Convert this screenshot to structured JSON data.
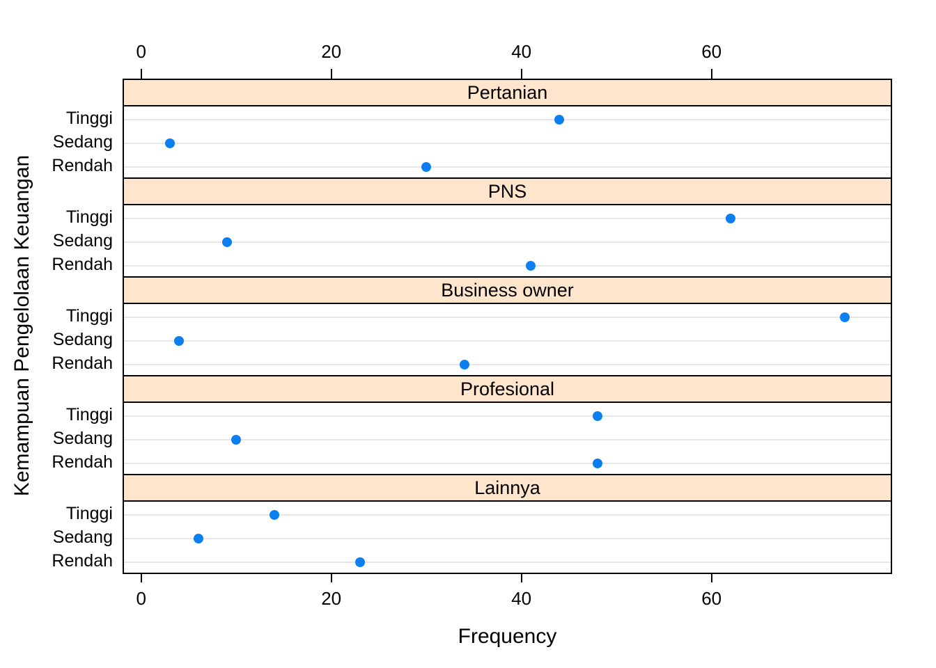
{
  "chart_data": {
    "type": "scatter",
    "subtype": "lattice-dotplot",
    "xlabel": "Frequency",
    "ylabel": "Kemampuan Pengelolaan Keuangan",
    "x_ticks": [
      0,
      20,
      40,
      60
    ],
    "xlim": [
      -2,
      79
    ],
    "y_categories": [
      "Tinggi",
      "Sedang",
      "Rendah"
    ],
    "panels": [
      {
        "label": "Pertanian",
        "values": {
          "Tinggi": 44,
          "Sedang": 3,
          "Rendah": 30
        }
      },
      {
        "label": "PNS",
        "values": {
          "Tinggi": 62,
          "Sedang": 9,
          "Rendah": 41
        }
      },
      {
        "label": "Business owner",
        "values": {
          "Tinggi": 74,
          "Sedang": 4,
          "Rendah": 34
        }
      },
      {
        "label": "Profesional",
        "values": {
          "Tinggi": 48,
          "Sedang": 10,
          "Rendah": 48
        }
      },
      {
        "label": "Lainnya",
        "values": {
          "Tinggi": 14,
          "Sedang": 6,
          "Rendah": 23
        }
      }
    ],
    "legend": null,
    "grid": "horizontal-only",
    "colors": {
      "point": "#0c7ff0",
      "strip_background": "#ffe5cc",
      "gridline": "#e6e6e6",
      "border": "#000000",
      "text": "#000000",
      "background": "#ffffff"
    }
  }
}
